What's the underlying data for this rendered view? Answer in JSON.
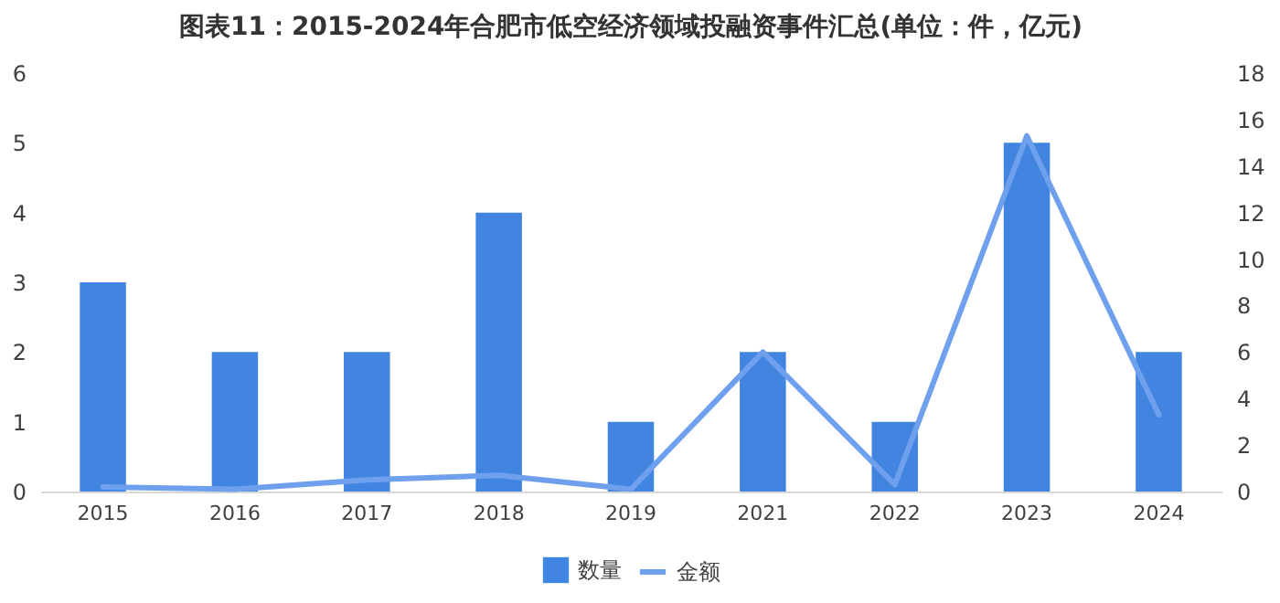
{
  "chart_data": {
    "type": "bar",
    "title": "图表11：2015-2024年合肥市低空经济领域投融资事件汇总(单位：件，亿元)",
    "categories": [
      "2015",
      "2016",
      "2017",
      "2018",
      "2019",
      "2021",
      "2022",
      "2023",
      "2024"
    ],
    "series": [
      {
        "name": "数量",
        "color": "#4285e0",
        "values": [
          3,
          2,
          2,
          4,
          1,
          2,
          1,
          5,
          2
        ]
      },
      {
        "name": "金额",
        "type": "line",
        "axis": "y2",
        "color": "#6fa0ee",
        "values": [
          0.2,
          0.1,
          0.5,
          0.7,
          0.1,
          6,
          0.3,
          15.3,
          3.3
        ]
      }
    ],
    "ylim": [
      0,
      6
    ],
    "yticks": [
      0,
      1,
      2,
      3,
      4,
      5,
      6
    ],
    "y2lim": [
      0,
      18
    ],
    "y2ticks": [
      0,
      2,
      4,
      6,
      8,
      10,
      12,
      14,
      16,
      18
    ],
    "legend": "bottom",
    "grid": false
  }
}
